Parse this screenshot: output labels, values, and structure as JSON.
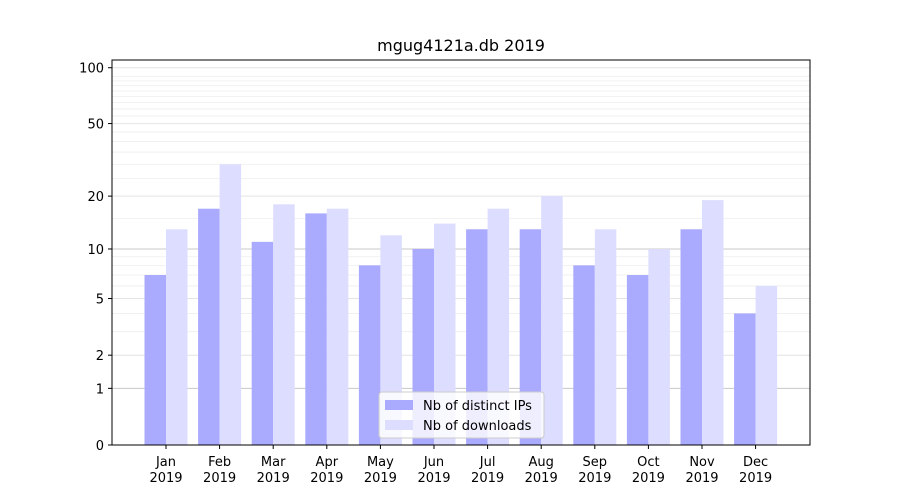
{
  "chart_data": {
    "type": "bar",
    "title": "mgug4121a.db 2019",
    "xlabel": "",
    "ylabel": "",
    "y_scale": "log(1+y)",
    "ylim": [
      0,
      110
    ],
    "yticks": [
      0,
      1,
      2,
      5,
      10,
      20,
      50,
      100
    ],
    "ytick_labels": [
      "0",
      "1",
      "2",
      "5",
      "10",
      "20",
      "50",
      "100"
    ],
    "grid": true,
    "legend_position": "bottom-center",
    "categories": [
      [
        "Jan",
        "2019"
      ],
      [
        "Feb",
        "2019"
      ],
      [
        "Mar",
        "2019"
      ],
      [
        "Apr",
        "2019"
      ],
      [
        "May",
        "2019"
      ],
      [
        "Jun",
        "2019"
      ],
      [
        "Jul",
        "2019"
      ],
      [
        "Aug",
        "2019"
      ],
      [
        "Sep",
        "2019"
      ],
      [
        "Oct",
        "2019"
      ],
      [
        "Nov",
        "2019"
      ],
      [
        "Dec",
        "2019"
      ]
    ],
    "series": [
      {
        "name": "Nb of distinct IPs",
        "color": "#aaaaff",
        "values": [
          7,
          17,
          11,
          16,
          8,
          10,
          13,
          13,
          8,
          7,
          13,
          4
        ]
      },
      {
        "name": "Nb of downloads",
        "color": "#ddddff",
        "values": [
          13,
          30,
          18,
          17,
          12,
          14,
          17,
          20,
          13,
          10,
          19,
          6
        ]
      }
    ]
  }
}
